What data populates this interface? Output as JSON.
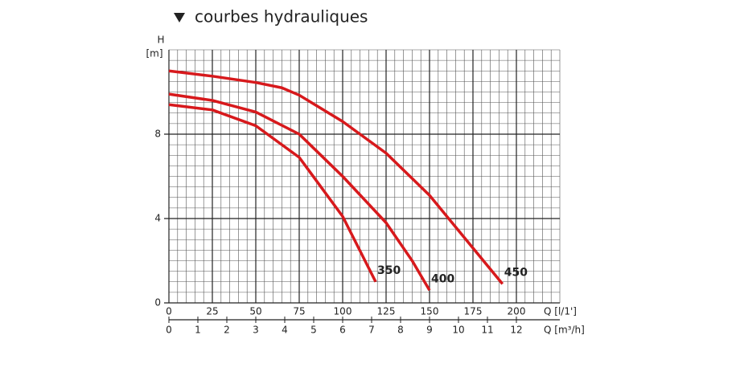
{
  "chart_data": {
    "type": "line",
    "title": "courbes hydrauliques",
    "ylabel_top": "H",
    "ylabel": "[m]",
    "xlabel": "Q [l/1']",
    "x2label": "Q [m³/h]",
    "xlim": [
      0,
      225
    ],
    "xticks": [
      0,
      25,
      50,
      75,
      100,
      125,
      150,
      175,
      200
    ],
    "x2lim": [
      0,
      13.5
    ],
    "x2ticks": [
      0,
      1,
      2,
      3,
      4,
      5,
      6,
      7,
      8,
      9,
      10,
      11,
      12
    ],
    "ylim": [
      0,
      12
    ],
    "yticks": [
      0,
      4,
      8
    ],
    "grid": true,
    "series": [
      {
        "name": "350",
        "color": "#d7191c",
        "x": [
          0,
          25,
          50,
          75,
          100,
          119
        ],
        "values": [
          9.4,
          9.15,
          8.4,
          6.9,
          4.1,
          1.0
        ]
      },
      {
        "name": "400",
        "color": "#d7191c",
        "x": [
          0,
          25,
          50,
          75,
          100,
          125,
          140,
          150
        ],
        "values": [
          9.9,
          9.6,
          9.05,
          8.0,
          6.0,
          3.8,
          2.0,
          0.6
        ]
      },
      {
        "name": "450",
        "color": "#d7191c",
        "x": [
          0,
          25,
          50,
          65,
          75,
          100,
          125,
          150,
          175,
          192
        ],
        "values": [
          11.0,
          10.75,
          10.45,
          10.2,
          9.85,
          8.6,
          7.1,
          5.1,
          2.6,
          0.9
        ]
      }
    ]
  }
}
